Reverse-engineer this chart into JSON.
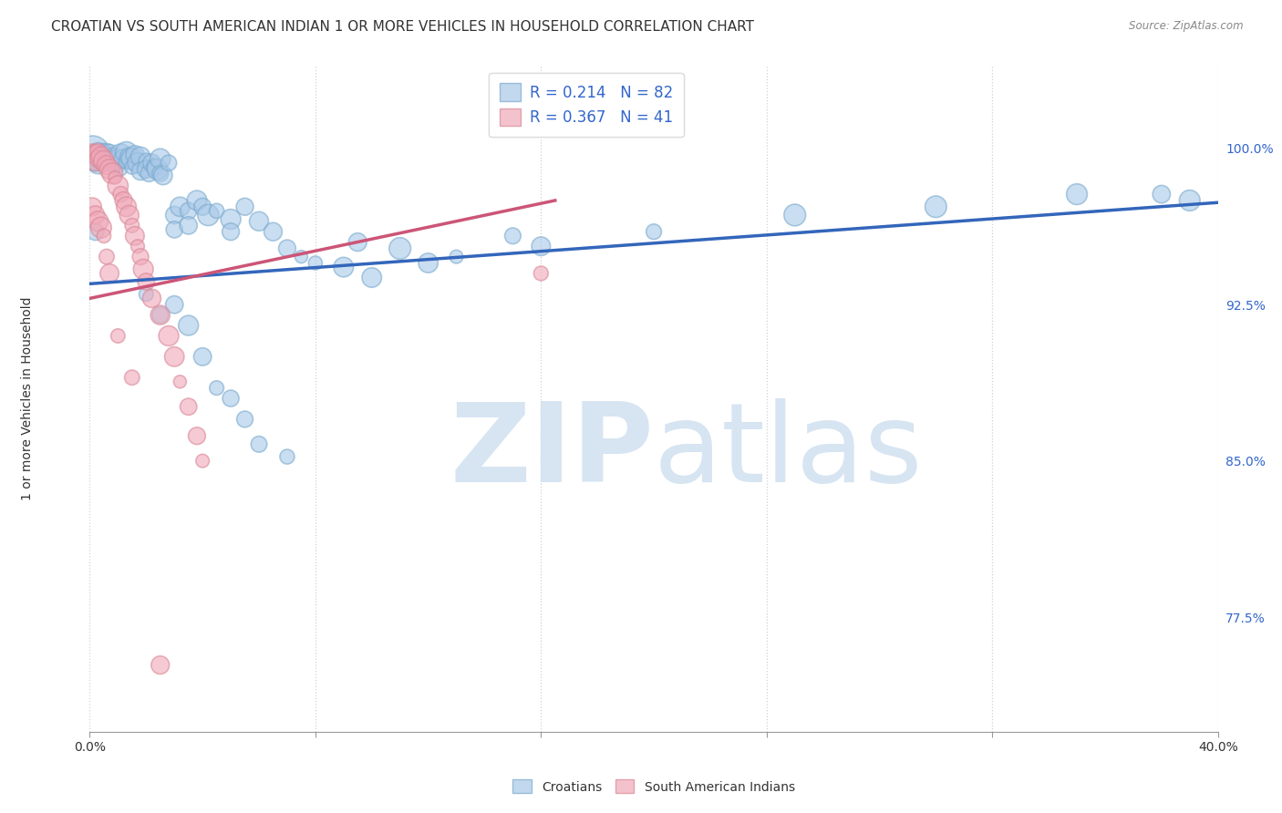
{
  "title": "CROATIAN VS SOUTH AMERICAN INDIAN 1 OR MORE VEHICLES IN HOUSEHOLD CORRELATION CHART",
  "source": "Source: ZipAtlas.com",
  "ylabel": "1 or more Vehicles in Household",
  "ytick_labels": [
    "77.5%",
    "85.0%",
    "92.5%",
    "100.0%"
  ],
  "ytick_values": [
    0.775,
    0.85,
    0.925,
    1.0
  ],
  "xlim": [
    0.0,
    0.4
  ],
  "ylim": [
    0.72,
    1.04
  ],
  "legend_blue_R": "0.214",
  "legend_blue_N": "82",
  "legend_pink_R": "0.367",
  "legend_pink_N": "41",
  "blue_color": "#a8c8e8",
  "blue_edge_color": "#7aaace",
  "pink_color": "#f0a8b8",
  "pink_edge_color": "#d88898",
  "blue_line_color": "#3366bb",
  "pink_line_color": "#cc5577",
  "background_color": "#ffffff",
  "watermark_color": "#d0e0f0",
  "grid_color": "#cccccc",
  "blue_regression": [
    0.0,
    0.935,
    0.4,
    0.974
  ],
  "pink_regression": [
    0.0,
    0.928,
    0.165,
    0.975
  ],
  "blue_points": [
    [
      0.001,
      0.998
    ],
    [
      0.002,
      0.996
    ],
    [
      0.002,
      0.993
    ],
    [
      0.003,
      0.998
    ],
    [
      0.003,
      0.993
    ],
    [
      0.004,
      0.997
    ],
    [
      0.004,
      0.994
    ],
    [
      0.005,
      0.999
    ],
    [
      0.005,
      0.994
    ],
    [
      0.006,
      0.998
    ],
    [
      0.006,
      0.996
    ],
    [
      0.007,
      0.997
    ],
    [
      0.007,
      0.993
    ],
    [
      0.008,
      0.997
    ],
    [
      0.008,
      0.995
    ],
    [
      0.009,
      0.993
    ],
    [
      0.01,
      0.996
    ],
    [
      0.01,
      0.994
    ],
    [
      0.011,
      0.997
    ],
    [
      0.011,
      0.99
    ],
    [
      0.012,
      0.995
    ],
    [
      0.013,
      0.998
    ],
    [
      0.013,
      0.994
    ],
    [
      0.014,
      0.996
    ],
    [
      0.015,
      0.995
    ],
    [
      0.015,
      0.991
    ],
    [
      0.016,
      0.997
    ],
    [
      0.017,
      0.993
    ],
    [
      0.018,
      0.996
    ],
    [
      0.018,
      0.989
    ],
    [
      0.02,
      0.994
    ],
    [
      0.02,
      0.99
    ],
    [
      0.021,
      0.988
    ],
    [
      0.022,
      0.993
    ],
    [
      0.023,
      0.991
    ],
    [
      0.024,
      0.99
    ],
    [
      0.025,
      0.995
    ],
    [
      0.025,
      0.988
    ],
    [
      0.026,
      0.987
    ],
    [
      0.028,
      0.993
    ],
    [
      0.03,
      0.968
    ],
    [
      0.03,
      0.961
    ],
    [
      0.032,
      0.972
    ],
    [
      0.035,
      0.97
    ],
    [
      0.035,
      0.963
    ],
    [
      0.038,
      0.975
    ],
    [
      0.04,
      0.972
    ],
    [
      0.042,
      0.968
    ],
    [
      0.045,
      0.97
    ],
    [
      0.05,
      0.966
    ],
    [
      0.05,
      0.96
    ],
    [
      0.055,
      0.972
    ],
    [
      0.06,
      0.965
    ],
    [
      0.065,
      0.96
    ],
    [
      0.07,
      0.952
    ],
    [
      0.075,
      0.948
    ],
    [
      0.08,
      0.945
    ],
    [
      0.09,
      0.943
    ],
    [
      0.095,
      0.955
    ],
    [
      0.1,
      0.938
    ],
    [
      0.11,
      0.952
    ],
    [
      0.12,
      0.945
    ],
    [
      0.13,
      0.948
    ],
    [
      0.15,
      0.958
    ],
    [
      0.16,
      0.953
    ],
    [
      0.2,
      0.96
    ],
    [
      0.25,
      0.968
    ],
    [
      0.3,
      0.972
    ],
    [
      0.35,
      0.978
    ],
    [
      0.38,
      0.978
    ],
    [
      0.39,
      0.975
    ],
    [
      0.02,
      0.93
    ],
    [
      0.025,
      0.92
    ],
    [
      0.03,
      0.925
    ],
    [
      0.035,
      0.915
    ],
    [
      0.04,
      0.9
    ],
    [
      0.045,
      0.885
    ],
    [
      0.05,
      0.88
    ],
    [
      0.055,
      0.87
    ],
    [
      0.06,
      0.858
    ],
    [
      0.07,
      0.852
    ],
    [
      0.002,
      0.96
    ]
  ],
  "pink_points": [
    [
      0.001,
      0.998
    ],
    [
      0.002,
      0.997
    ],
    [
      0.002,
      0.994
    ],
    [
      0.003,
      0.998
    ],
    [
      0.003,
      0.995
    ],
    [
      0.004,
      0.996
    ],
    [
      0.005,
      0.994
    ],
    [
      0.006,
      0.992
    ],
    [
      0.007,
      0.99
    ],
    [
      0.008,
      0.988
    ],
    [
      0.009,
      0.986
    ],
    [
      0.01,
      0.982
    ],
    [
      0.011,
      0.978
    ],
    [
      0.012,
      0.975
    ],
    [
      0.013,
      0.972
    ],
    [
      0.014,
      0.968
    ],
    [
      0.015,
      0.963
    ],
    [
      0.016,
      0.958
    ],
    [
      0.017,
      0.953
    ],
    [
      0.018,
      0.948
    ],
    [
      0.019,
      0.942
    ],
    [
      0.02,
      0.936
    ],
    [
      0.022,
      0.928
    ],
    [
      0.025,
      0.92
    ],
    [
      0.028,
      0.91
    ],
    [
      0.03,
      0.9
    ],
    [
      0.032,
      0.888
    ],
    [
      0.035,
      0.876
    ],
    [
      0.038,
      0.862
    ],
    [
      0.04,
      0.85
    ],
    [
      0.001,
      0.972
    ],
    [
      0.002,
      0.968
    ],
    [
      0.003,
      0.965
    ],
    [
      0.004,
      0.962
    ],
    [
      0.005,
      0.958
    ],
    [
      0.006,
      0.948
    ],
    [
      0.007,
      0.94
    ],
    [
      0.01,
      0.91
    ],
    [
      0.015,
      0.89
    ],
    [
      0.025,
      0.752
    ],
    [
      0.16,
      0.94
    ]
  ],
  "title_fontsize": 11,
  "axis_label_fontsize": 10,
  "tick_fontsize": 10
}
